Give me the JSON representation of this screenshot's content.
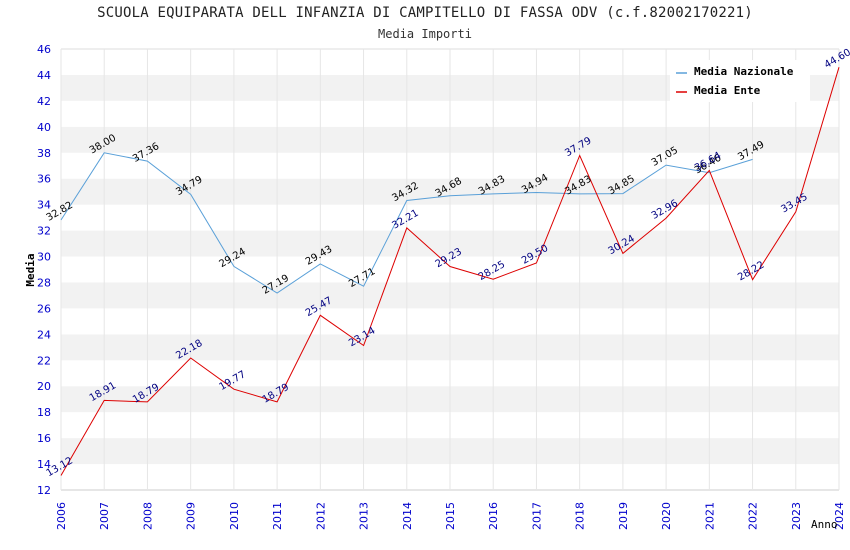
{
  "chart_data": {
    "type": "line",
    "title": "SCUOLA EQUIPARATA DELL INFANZIA DI CAMPITELLO DI FASSA ODV (c.f.82002170221)",
    "subtitle": "Media Importi",
    "ylabel": "Media",
    "xlabel": "Anno",
    "ylim": [
      12,
      46
    ],
    "ytick_step": 2,
    "x": [
      "2006",
      "2007",
      "2008",
      "2009",
      "2010",
      "2011",
      "2012",
      "2013",
      "2014",
      "2015",
      "2016",
      "2017",
      "2018",
      "2019",
      "2020",
      "2021",
      "2022",
      "2023",
      "2024"
    ],
    "grid": "horizontal alternating bands",
    "legend_position": "top-right",
    "series": [
      {
        "name": "Media Nazionale",
        "color": "#5aa0d8",
        "label_color": "#000000",
        "values": [
          32.82,
          38.0,
          37.36,
          34.79,
          29.24,
          27.19,
          29.43,
          27.71,
          34.32,
          34.68,
          34.83,
          34.94,
          34.83,
          34.85,
          37.05,
          36.46,
          37.49,
          null,
          null
        ],
        "labels": [
          "32.82",
          "38.00",
          "37.36",
          "34.79",
          "29.24",
          "27.19",
          "29.43",
          "27.71",
          "34.32",
          "34.68",
          "34.83",
          "34.94",
          "34.83",
          "34.85",
          "37.05",
          "36.46",
          "37.49",
          "",
          ""
        ]
      },
      {
        "name": "Media Ente",
        "color": "#dd0000",
        "label_color": "#000080",
        "values": [
          13.12,
          18.91,
          18.79,
          22.18,
          19.77,
          18.79,
          25.47,
          23.14,
          32.21,
          29.23,
          28.25,
          29.5,
          37.79,
          30.24,
          32.96,
          36.64,
          28.22,
          33.45,
          44.6
        ],
        "labels": [
          "13.12",
          "18.91",
          "18.79",
          "22.18",
          "19.77",
          "18.79",
          "25.47",
          "23.14",
          "32.21",
          "29.23",
          "28.25",
          "29.50",
          "37.79",
          "30.24",
          "32.96",
          "36.64",
          "28.22",
          "33.45",
          "44.60"
        ]
      }
    ]
  }
}
